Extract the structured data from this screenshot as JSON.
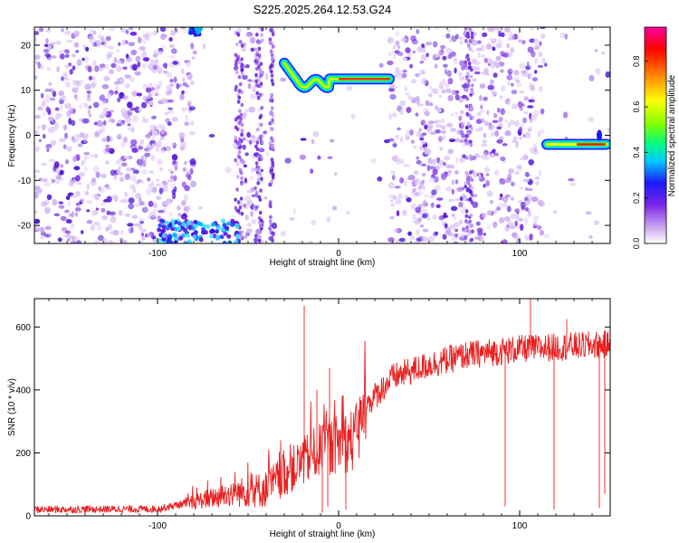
{
  "title": "S225.2025.264.12.53.G24",
  "chart_data": [
    {
      "type": "heatmap",
      "xlabel": "Height of straight line (km)",
      "ylabel": "Frequency (Hz)",
      "xlim": [
        -168,
        150
      ],
      "ylim": [
        -24,
        24
      ],
      "xticks": [
        -100,
        0,
        100
      ],
      "xtick_labels": [
        "-100",
        "0",
        "100"
      ],
      "yticks": [
        -20,
        -10,
        0,
        10,
        20
      ],
      "ytick_labels": [
        "-20",
        "-10",
        "0",
        "10",
        "20"
      ],
      "colorbar": {
        "label": "Normalized spectral amplitude",
        "range": [
          0,
          0.95
        ],
        "ticks": [
          0,
          0.2,
          0.4,
          0.6,
          0.8
        ],
        "tick_labels": [
          "0.0",
          "0.2",
          "0.4",
          "0.6",
          "0.8"
        ],
        "colormap": [
          "#ffffff",
          "#c8a0f0",
          "#7a22e6",
          "#1a1aff",
          "#00c8ff",
          "#00ff80",
          "#80ff00",
          "#ffff00",
          "#ff8000",
          "#ff0000",
          "#ff00a0"
        ]
      },
      "features": [
        {
          "type": "tone",
          "x_range": [
            -30,
            28
          ],
          "frequency_hz": [
            15,
            10,
            12.5
          ],
          "amplitude": 0.9
        },
        {
          "type": "tone",
          "x_range": [
            115,
            148
          ],
          "frequency_hz": -2,
          "amplitude": 0.9
        },
        {
          "type": "blob",
          "x_range": [
            -100,
            -55
          ],
          "frequency_hz": [
            -24,
            -19
          ],
          "amplitude": 0.35
        },
        {
          "type": "blob",
          "x_range": [
            -82,
            -76
          ],
          "frequency_hz": [
            22,
            24
          ],
          "amplitude": 0.3
        }
      ]
    },
    {
      "type": "line",
      "xlabel": "Height of straight line (km)",
      "ylabel": "SNR (10 * v/v)",
      "xlim": [
        -168,
        150
      ],
      "ylim": [
        0,
        690
      ],
      "xticks": [
        -100,
        0,
        100
      ],
      "xtick_labels": [
        "-100",
        "0",
        "100"
      ],
      "yticks": [
        0,
        200,
        400,
        600
      ],
      "ytick_labels": [
        "0",
        "200",
        "400",
        "600"
      ],
      "color": "#e82020",
      "trend": [
        [
          -168,
          20
        ],
        [
          -100,
          22
        ],
        [
          -80,
          45
        ],
        [
          -60,
          70
        ],
        [
          -40,
          85
        ],
        [
          -30,
          130
        ],
        [
          -20,
          170
        ],
        [
          -10,
          210
        ],
        [
          0,
          230
        ],
        [
          10,
          245
        ],
        [
          15,
          350
        ],
        [
          30,
          440
        ],
        [
          50,
          480
        ],
        [
          70,
          510
        ],
        [
          100,
          530
        ],
        [
          150,
          545
        ]
      ],
      "spikes": [
        [
          -19,
          668
        ],
        [
          -12,
          400
        ],
        [
          -5,
          470
        ],
        [
          106,
          690
        ],
        [
          126,
          625
        ]
      ],
      "dips": [
        [
          -9,
          10
        ],
        [
          -6,
          30
        ],
        [
          4,
          20
        ],
        [
          92,
          30
        ],
        [
          119,
          20
        ],
        [
          144,
          25
        ],
        [
          147,
          70
        ]
      ]
    }
  ]
}
